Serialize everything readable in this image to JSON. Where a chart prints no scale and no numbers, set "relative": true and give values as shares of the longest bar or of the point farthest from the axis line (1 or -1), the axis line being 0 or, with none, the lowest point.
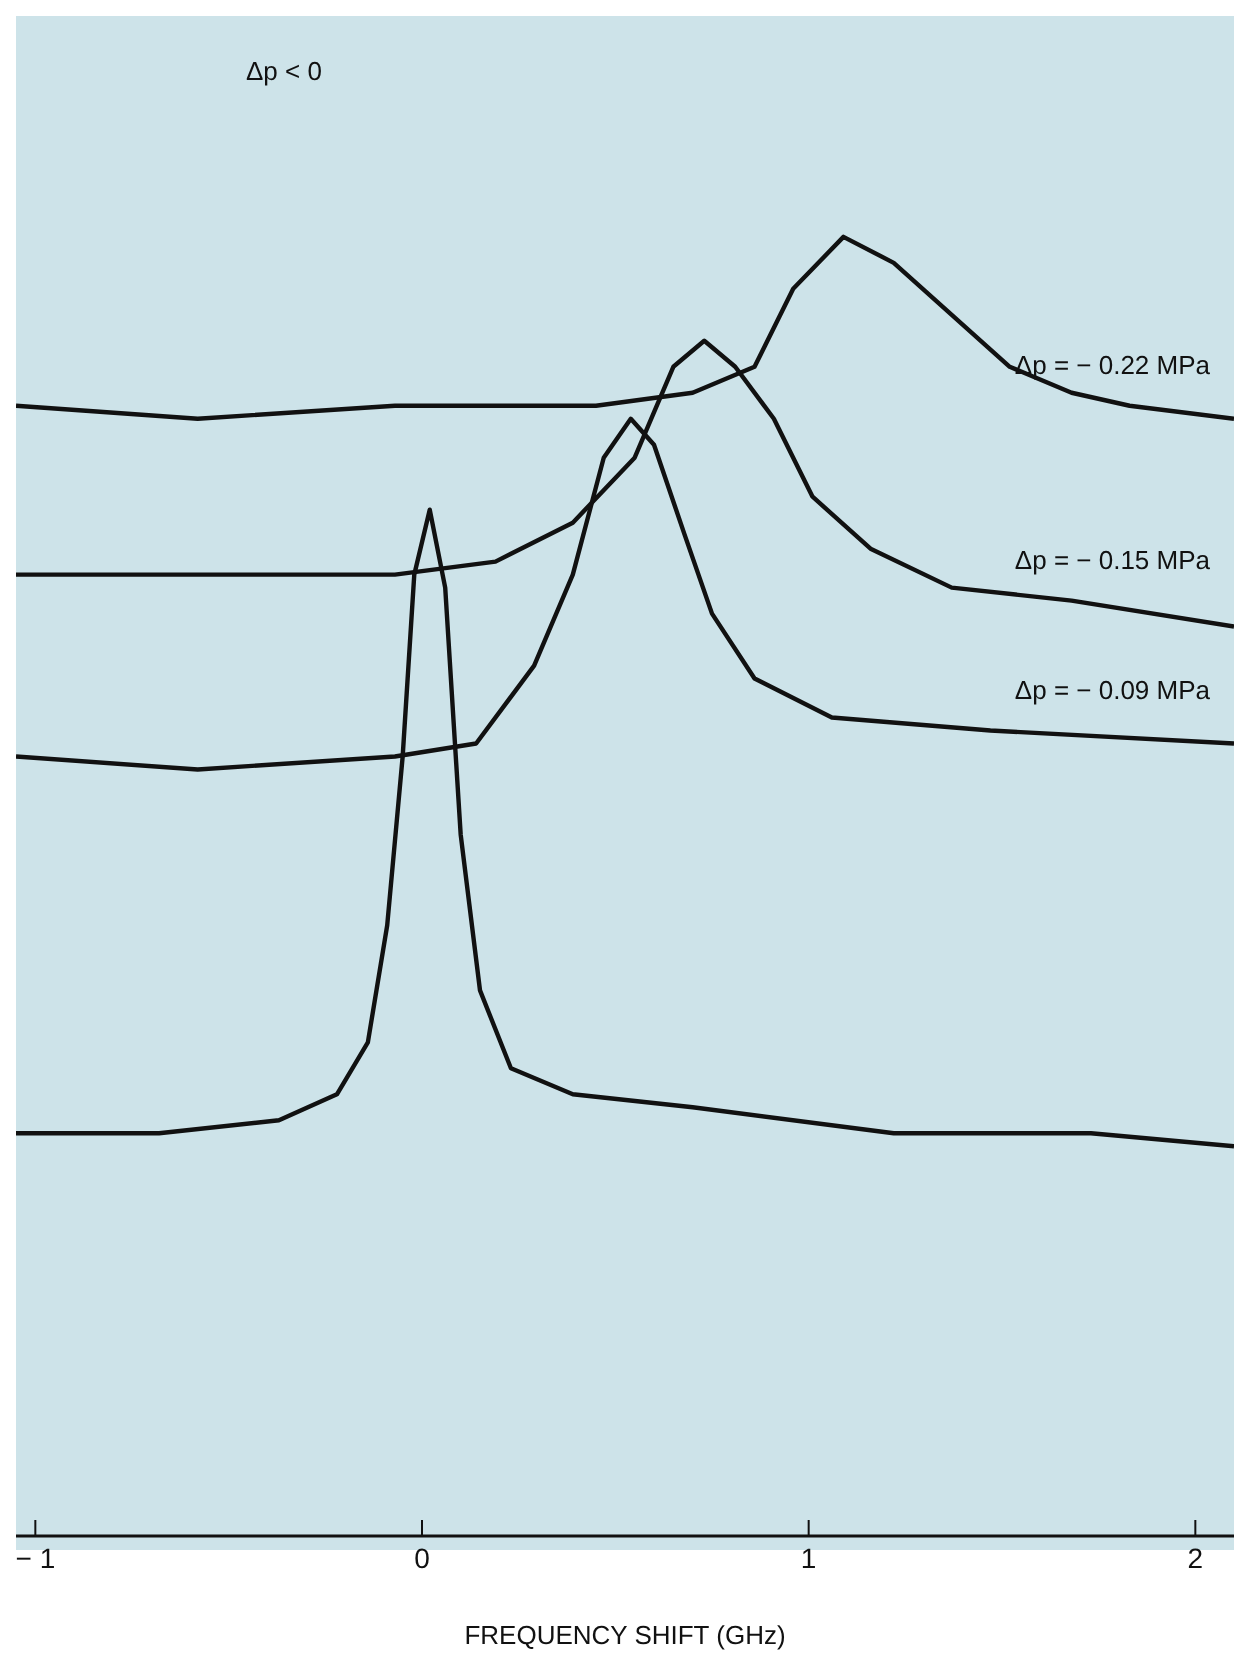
{
  "chart_data": {
    "type": "line",
    "relative": true,
    "xlabel": "FREQUENCY SHIFT (GHz)",
    "xlim": [
      -1.05,
      2.1
    ],
    "xticks": [
      {
        "value": -1,
        "label": "− 1"
      },
      0,
      1,
      2
    ],
    "annotations": [
      "Δp < 0"
    ],
    "marker": "none",
    "line_style": "solid",
    "series": [
      {
        "name": "Δp = − 0.22 MPa",
        "color": "#111111",
        "x": [
          -1.05,
          -0.58,
          -0.07,
          0.45,
          0.7,
          0.86,
          0.96,
          1.09,
          1.22,
          1.37,
          1.52,
          1.68,
          1.83,
          2.1
        ],
        "values": [
          0.87,
          0.86,
          0.87,
          0.87,
          0.88,
          0.9,
          0.96,
          1.0,
          0.98,
          0.94,
          0.9,
          0.88,
          0.87,
          0.86
        ]
      },
      {
        "name": "Δp = − 0.15 MPa",
        "color": "#111111",
        "x": [
          -1.05,
          -0.58,
          -0.07,
          0.19,
          0.39,
          0.55,
          0.65,
          0.73,
          0.81,
          0.91,
          1.01,
          1.16,
          1.37,
          1.68,
          2.1
        ],
        "values": [
          0.74,
          0.74,
          0.74,
          0.75,
          0.78,
          0.83,
          0.9,
          0.92,
          0.9,
          0.86,
          0.8,
          0.76,
          0.73,
          0.72,
          0.7
        ]
      },
      {
        "name": "Δp = − 0.09 MPa",
        "color": "#111111",
        "x": [
          -1.05,
          -0.58,
          -0.07,
          0.14,
          0.29,
          0.39,
          0.47,
          0.54,
          0.6,
          0.68,
          0.75,
          0.86,
          1.06,
          1.47,
          2.1
        ],
        "values": [
          0.6,
          0.59,
          0.6,
          0.61,
          0.67,
          0.74,
          0.83,
          0.86,
          0.84,
          0.77,
          0.71,
          0.66,
          0.63,
          0.62,
          0.61
        ]
      },
      {
        "color": "#111111",
        "x": [
          -1.05,
          -0.68,
          -0.37,
          -0.22,
          -0.14,
          -0.09,
          -0.05,
          -0.02,
          0.02,
          0.06,
          0.1,
          0.15,
          0.23,
          0.39,
          0.7,
          1.22,
          1.73,
          2.1
        ],
        "values": [
          0.31,
          0.31,
          0.32,
          0.34,
          0.38,
          0.47,
          0.6,
          0.74,
          0.79,
          0.73,
          0.54,
          0.42,
          0.36,
          0.34,
          0.33,
          0.31,
          0.31,
          0.3
        ]
      }
    ]
  }
}
